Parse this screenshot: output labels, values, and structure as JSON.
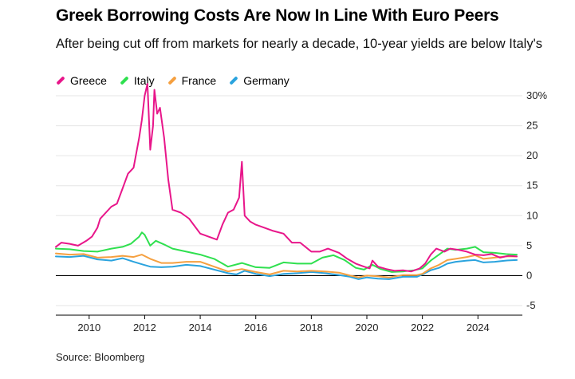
{
  "header": {
    "title": "Greek Borrowing Costs Are Now In Line With Euro Peers",
    "subtitle": "After being cut off from markets for nearly a decade, 10-year yields are below Italy's"
  },
  "footer": {
    "source": "Source: Bloomberg"
  },
  "colors": {
    "Greece": "#e8168a",
    "Italy": "#2fe04f",
    "France": "#f5a040",
    "Germany": "#2aa3de",
    "grid": "#e6e6e6",
    "zero": "#000000"
  },
  "chart_data": {
    "type": "line",
    "title": "Greek Borrowing Costs Are Now In Line With Euro Peers",
    "ylabel": "",
    "xlabel": "",
    "ylim": [
      -5,
      30
    ],
    "xlim": [
      2008.8,
      2025.6
    ],
    "y_ticks": [
      -5,
      0,
      5,
      10,
      15,
      20,
      25,
      30
    ],
    "y_tick_labels": [
      "-5",
      "0",
      "5",
      "10",
      "15",
      "20",
      "25",
      "30%"
    ],
    "x_ticks": [
      2010,
      2012,
      2014,
      2016,
      2018,
      2020,
      2022,
      2024
    ],
    "x_tick_labels": [
      "2010",
      "2012",
      "2014",
      "2016",
      "2018",
      "2020",
      "2022",
      "2024"
    ],
    "grid": "horizontal",
    "legend_position": "top-left",
    "series": [
      {
        "name": "Greece",
        "x": [
          2008.8,
          2009.0,
          2009.3,
          2009.6,
          2009.9,
          2010.1,
          2010.3,
          2010.4,
          2010.6,
          2010.8,
          2011.0,
          2011.2,
          2011.4,
          2011.6,
          2011.8,
          2011.9,
          2012.0,
          2012.1,
          2012.2,
          2012.3,
          2012.35,
          2012.45,
          2012.55,
          2012.7,
          2012.85,
          2013.0,
          2013.3,
          2013.6,
          2014.0,
          2014.3,
          2014.6,
          2014.8,
          2015.0,
          2015.2,
          2015.4,
          2015.5,
          2015.6,
          2015.8,
          2016.0,
          2016.3,
          2016.6,
          2017.0,
          2017.3,
          2017.6,
          2018.0,
          2018.3,
          2018.6,
          2019.0,
          2019.3,
          2019.6,
          2019.9,
          2020.1,
          2020.2,
          2020.4,
          2020.7,
          2021.0,
          2021.3,
          2021.6,
          2021.9,
          2022.1,
          2022.3,
          2022.5,
          2022.8,
          2023.0,
          2023.3,
          2023.6,
          2023.9,
          2024.2,
          2024.5,
          2024.8,
          2025.1,
          2025.4
        ],
        "y": [
          4.8,
          5.5,
          5.3,
          5.0,
          5.8,
          6.5,
          8.0,
          9.5,
          10.5,
          11.5,
          12.0,
          14.5,
          17.0,
          18.0,
          23.0,
          26.0,
          30.0,
          32.0,
          21.0,
          25.0,
          31.0,
          27.0,
          28.0,
          23.0,
          16.0,
          11.0,
          10.5,
          9.5,
          7.0,
          6.5,
          6.0,
          8.5,
          10.5,
          11.0,
          13.0,
          19.0,
          10.0,
          9.0,
          8.5,
          8.0,
          7.5,
          7.0,
          5.5,
          5.5,
          4.0,
          4.0,
          4.5,
          3.8,
          2.8,
          2.0,
          1.5,
          1.2,
          2.5,
          1.5,
          1.1,
          0.8,
          0.9,
          0.7,
          1.2,
          2.0,
          3.5,
          4.5,
          4.0,
          4.5,
          4.3,
          4.0,
          3.5,
          3.4,
          3.6,
          3.0,
          3.3,
          3.2
        ]
      },
      {
        "name": "Italy",
        "x": [
          2008.8,
          2009.3,
          2009.8,
          2010.3,
          2010.8,
          2011.2,
          2011.5,
          2011.8,
          2011.9,
          2012.0,
          2012.2,
          2012.4,
          2012.7,
          2013.0,
          2013.5,
          2014.0,
          2014.5,
          2015.0,
          2015.5,
          2016.0,
          2016.5,
          2017.0,
          2017.5,
          2018.0,
          2018.4,
          2018.8,
          2019.2,
          2019.6,
          2019.9,
          2020.2,
          2020.5,
          2020.9,
          2021.3,
          2021.7,
          2022.0,
          2022.3,
          2022.6,
          2022.9,
          2023.2,
          2023.6,
          2023.9,
          2024.2,
          2024.6,
          2025.0,
          2025.4
        ],
        "y": [
          4.5,
          4.4,
          4.1,
          4.0,
          4.5,
          4.8,
          5.3,
          6.5,
          7.2,
          6.8,
          5.0,
          5.8,
          5.2,
          4.5,
          4.0,
          3.5,
          2.8,
          1.5,
          2.1,
          1.4,
          1.3,
          2.2,
          2.0,
          2.0,
          3.0,
          3.4,
          2.6,
          1.3,
          1.0,
          1.8,
          1.1,
          0.6,
          0.7,
          0.9,
          1.2,
          2.5,
          3.5,
          4.5,
          4.3,
          4.5,
          4.8,
          3.9,
          3.8,
          3.6,
          3.5
        ]
      },
      {
        "name": "France",
        "x": [
          2008.8,
          2009.3,
          2009.8,
          2010.3,
          2010.8,
          2011.2,
          2011.6,
          2011.9,
          2012.2,
          2012.6,
          2013.0,
          2013.5,
          2014.0,
          2014.5,
          2015.0,
          2015.5,
          2016.0,
          2016.5,
          2017.0,
          2017.5,
          2018.0,
          2018.5,
          2019.0,
          2019.4,
          2019.7,
          2020.0,
          2020.4,
          2020.8,
          2021.3,
          2021.8,
          2022.0,
          2022.3,
          2022.6,
          2022.9,
          2023.2,
          2023.6,
          2023.9,
          2024.2,
          2024.6,
          2025.0,
          2025.4
        ],
        "y": [
          3.7,
          3.5,
          3.6,
          3.0,
          3.1,
          3.3,
          3.1,
          3.5,
          2.8,
          2.1,
          2.1,
          2.3,
          2.3,
          1.5,
          0.7,
          1.1,
          0.6,
          0.2,
          0.8,
          0.7,
          0.8,
          0.7,
          0.5,
          0.0,
          -0.3,
          0.0,
          -0.1,
          -0.3,
          0.1,
          0.1,
          0.3,
          1.2,
          1.8,
          2.6,
          2.8,
          3.1,
          3.4,
          2.8,
          3.0,
          3.2,
          3.2
        ]
      },
      {
        "name": "Germany",
        "x": [
          2008.8,
          2009.3,
          2009.8,
          2010.3,
          2010.8,
          2011.2,
          2011.6,
          2011.9,
          2012.2,
          2012.6,
          2013.0,
          2013.5,
          2014.0,
          2014.5,
          2015.0,
          2015.3,
          2015.6,
          2016.0,
          2016.5,
          2017.0,
          2017.5,
          2018.0,
          2018.5,
          2019.0,
          2019.4,
          2019.7,
          2020.0,
          2020.4,
          2020.8,
          2021.3,
          2021.8,
          2022.0,
          2022.3,
          2022.6,
          2022.9,
          2023.2,
          2023.6,
          2023.9,
          2024.2,
          2024.6,
          2025.0,
          2025.4
        ],
        "y": [
          3.2,
          3.1,
          3.3,
          2.7,
          2.5,
          2.9,
          2.3,
          1.9,
          1.5,
          1.4,
          1.5,
          1.8,
          1.6,
          1.0,
          0.4,
          0.2,
          0.8,
          0.3,
          -0.1,
          0.3,
          0.4,
          0.6,
          0.4,
          0.1,
          -0.2,
          -0.6,
          -0.3,
          -0.5,
          -0.6,
          -0.2,
          -0.2,
          0.2,
          0.9,
          1.3,
          2.0,
          2.3,
          2.5,
          2.6,
          2.2,
          2.3,
          2.5,
          2.6
        ]
      }
    ]
  }
}
